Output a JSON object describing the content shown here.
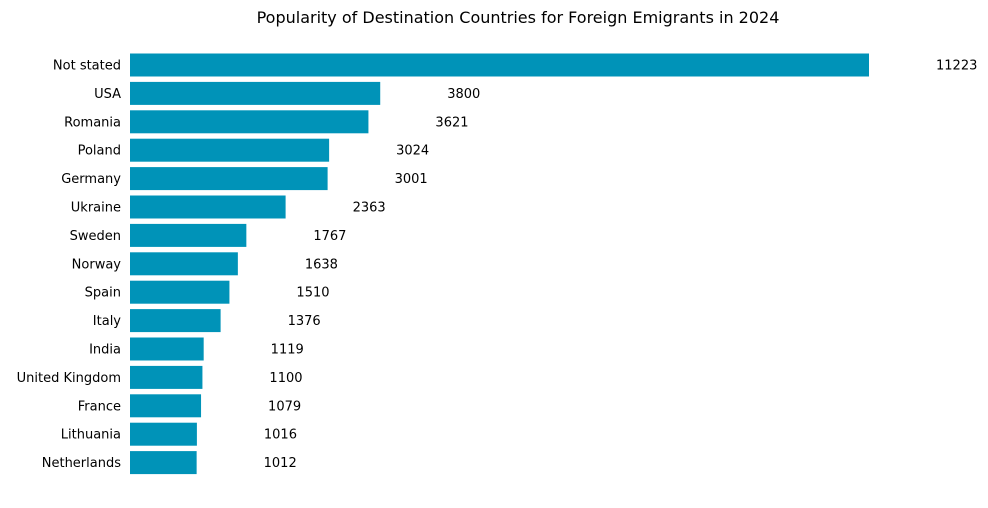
{
  "chart_data": {
    "type": "bar",
    "orientation": "horizontal",
    "title": "Popularity of Destination Countries for Foreign Emigrants in 2024",
    "xlabel": "",
    "ylabel": "",
    "categories": [
      "Not stated",
      "USA",
      "Romania",
      "Poland",
      "Germany",
      "Ukraine",
      "Sweden",
      "Norway",
      "Spain",
      "Italy",
      "India",
      "United Kingdom",
      "France",
      "Lithuania",
      "Netherlands"
    ],
    "values": [
      11223,
      3800,
      3621,
      3024,
      3001,
      2363,
      1767,
      1638,
      1510,
      1376,
      1119,
      1100,
      1079,
      1016,
      1012
    ],
    "xlim": [
      0,
      11223
    ],
    "bar_color": "#0093b8",
    "grid": false,
    "legend": "none",
    "axes_visible": false
  }
}
